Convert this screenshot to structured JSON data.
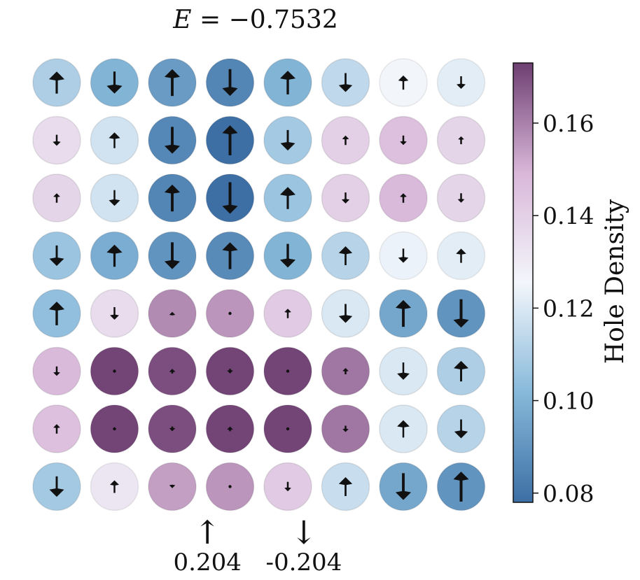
{
  "chart_data": {
    "type": "heatmap",
    "title": {
      "symbol": "E",
      "equals": "=",
      "value": "−0.7532"
    },
    "grid_size": [
      8,
      8
    ],
    "density": [
      [
        0.11,
        0.1,
        0.092,
        0.085,
        0.1,
        0.114,
        0.126,
        0.122
      ],
      [
        0.135,
        0.118,
        0.086,
        0.078,
        0.108,
        0.14,
        0.146,
        0.138
      ],
      [
        0.138,
        0.118,
        0.085,
        0.078,
        0.106,
        0.14,
        0.148,
        0.138
      ],
      [
        0.106,
        0.098,
        0.09,
        0.087,
        0.1,
        0.112,
        0.124,
        0.122
      ],
      [
        0.104,
        0.135,
        0.158,
        0.156,
        0.142,
        0.12,
        0.096,
        0.09
      ],
      [
        0.148,
        0.172,
        0.17,
        0.172,
        0.172,
        0.162,
        0.12,
        0.11
      ],
      [
        0.146,
        0.172,
        0.17,
        0.172,
        0.172,
        0.162,
        0.12,
        0.112
      ],
      [
        0.108,
        0.132,
        0.154,
        0.156,
        0.142,
        0.116,
        0.096,
        0.09
      ]
    ],
    "spin": [
      [
        0.14,
        -0.14,
        0.17,
        -0.17,
        0.15,
        -0.12,
        0.09,
        -0.08
      ],
      [
        -0.07,
        0.1,
        -0.17,
        0.19,
        -0.13,
        0.06,
        -0.06,
        0.05
      ],
      [
        0.06,
        -0.1,
        0.17,
        -0.2,
        0.14,
        -0.07,
        0.06,
        -0.06
      ],
      [
        -0.13,
        0.14,
        -0.17,
        0.17,
        -0.15,
        0.12,
        -0.09,
        0.09
      ],
      [
        0.15,
        -0.08,
        0.02,
        0.0,
        0.06,
        -0.12,
        0.17,
        -0.18
      ],
      [
        -0.06,
        0.0,
        0.03,
        -0.03,
        0.01,
        0.04,
        -0.11,
        0.13
      ],
      [
        0.06,
        0.0,
        -0.03,
        0.03,
        -0.01,
        -0.04,
        0.11,
        -0.12
      ],
      [
        -0.13,
        0.08,
        -0.02,
        0.0,
        -0.06,
        0.12,
        -0.17,
        0.19
      ]
    ],
    "colorbar": {
      "label": "Hole Density",
      "vmin": 0.078,
      "vmax": 0.173,
      "ticks": [
        0.08,
        0.1,
        0.12,
        0.14,
        0.16
      ],
      "tick_labels": [
        "0.08",
        "0.10",
        "0.12",
        "0.14",
        "0.16"
      ],
      "colormap": [
        "#3d6fa5",
        "#87b9da",
        "#f3f6fb",
        "#d9b7d9",
        "#6e3f72"
      ]
    },
    "legend": {
      "up": {
        "arrow": "↑",
        "label": "0.204"
      },
      "down": {
        "arrow": "↓",
        "label": "-0.204"
      }
    }
  }
}
